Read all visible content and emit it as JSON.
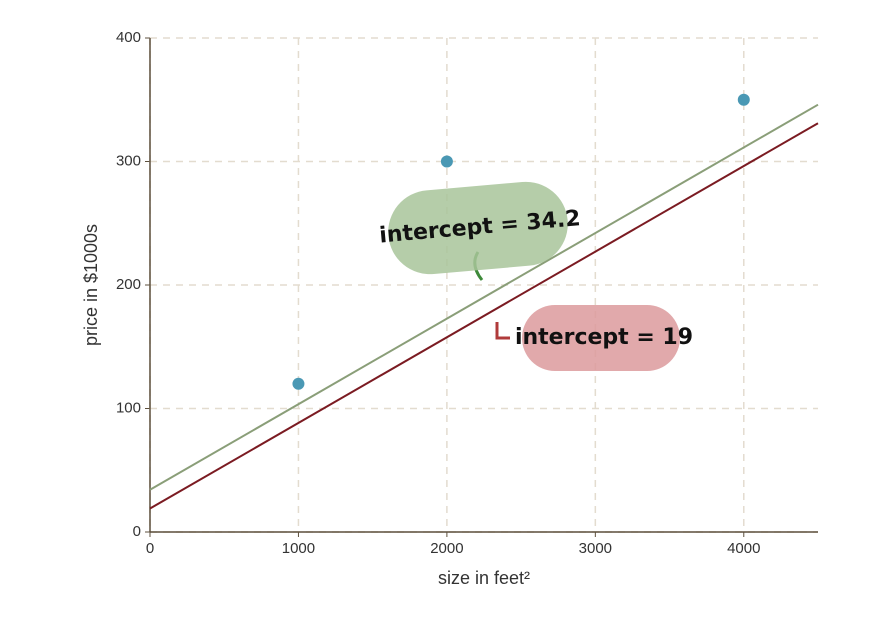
{
  "chart_data": {
    "type": "scatter",
    "xlabel": "size in feet²",
    "ylabel": "price in $1000s",
    "xlim": [
      0,
      4500
    ],
    "ylim": [
      0,
      400
    ],
    "xticks": [
      0,
      1000,
      2000,
      3000,
      4000
    ],
    "yticks": [
      0,
      100,
      200,
      300,
      400
    ],
    "grid": true,
    "series": [
      {
        "type": "scatter",
        "color": "#4a98b4",
        "x": [
          1000,
          2000,
          4000
        ],
        "values": [
          120,
          300,
          350
        ]
      },
      {
        "type": "line",
        "color": "#8a9e78",
        "x": [
          0,
          4500
        ],
        "values": [
          34.2,
          346
        ]
      },
      {
        "type": "line",
        "color": "#7b1b22",
        "x": [
          0,
          4500
        ],
        "values": [
          19,
          331
        ]
      }
    ],
    "annotations": [
      {
        "text": "intercept = 34.2",
        "color": "#a8c49a"
      },
      {
        "text": "intercept = 19",
        "color": "#dc9a9c"
      }
    ]
  }
}
